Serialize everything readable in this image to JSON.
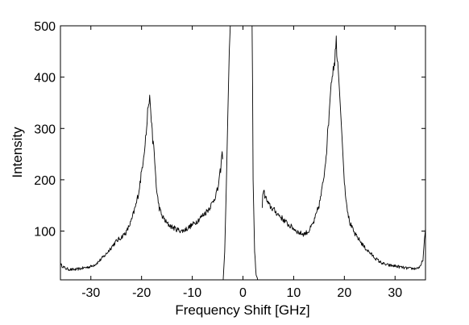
{
  "chart_data": {
    "type": "line",
    "title": "",
    "xlabel": "Frequency Shift [GHz]",
    "ylabel": "Intensity",
    "xlim": [
      -36,
      36
    ],
    "ylim": [
      5,
      500
    ],
    "xticks": [
      -30,
      -20,
      -10,
      0,
      10,
      20,
      30
    ],
    "yticks": [
      100,
      200,
      300,
      400,
      500
    ],
    "grid": false,
    "legend": false,
    "series": [
      {
        "name": "",
        "color": "#000000",
        "segments": [
          {
            "x": [
              -36,
              -35,
              -34,
              -33,
              -32,
              -31,
              -30,
              -29,
              -28,
              -27,
              -26,
              -25,
              -24,
              -23,
              -22,
              -21,
              -20.5,
              -20,
              -19.5,
              -19,
              -18.7,
              -18.4,
              -18.2,
              -18,
              -17.5,
              -17,
              -16.5,
              -16,
              -15,
              -14,
              -13,
              -12,
              -11,
              -10,
              -9,
              -8,
              -7,
              -6,
              -5,
              -4.6,
              -4.3,
              -4.1,
              -4.0
            ],
            "y": [
              35,
              27,
              25,
              25,
              27,
              29,
              31,
              36,
              45,
              55,
              68,
              80,
              88,
              98,
              120,
              155,
              180,
              215,
              255,
              300,
              345,
              365,
              335,
              300,
              250,
              175,
              145,
              130,
              115,
              108,
              103,
              100,
              105,
              112,
              120,
              130,
              140,
              155,
              180,
              205,
              230,
              255,
              240
            ]
          },
          {
            "x": [
              -3.9,
              -3.6,
              -3.3,
              -3.0,
              -2.7,
              -2.5
            ],
            "y": [
              5,
              60,
              180,
              320,
              450,
              500
            ]
          },
          {
            "x": [
              1.8,
              1.9,
              2.0,
              2.3,
              2.6,
              2.9
            ],
            "y": [
              500,
              380,
              200,
              60,
              15,
              5
            ]
          },
          {
            "x": [
              3.8,
              4.0,
              4.3,
              5,
              6,
              7,
              8,
              9,
              10,
              11,
              12,
              13,
              14,
              15,
              15.5,
              16,
              16.5,
              17,
              17.4,
              17.8,
              18.1,
              18.4,
              18.7,
              19,
              19.5,
              20,
              20.5,
              21,
              22,
              23,
              24,
              25,
              26,
              27,
              28,
              29,
              30,
              31,
              32,
              33,
              34,
              35,
              35.5,
              36
            ],
            "y": [
              150,
              180,
              170,
              152,
              142,
              132,
              122,
              112,
              105,
              97,
              94,
              100,
              118,
              150,
              175,
              210,
              260,
              330,
              390,
              420,
              435,
              470,
              430,
              380,
              290,
              195,
              150,
              118,
              95,
              82,
              68,
              58,
              48,
              40,
              35,
              33,
              32,
              30,
              28,
              27,
              27,
              30,
              45,
              105
            ]
          }
        ]
      }
    ]
  }
}
